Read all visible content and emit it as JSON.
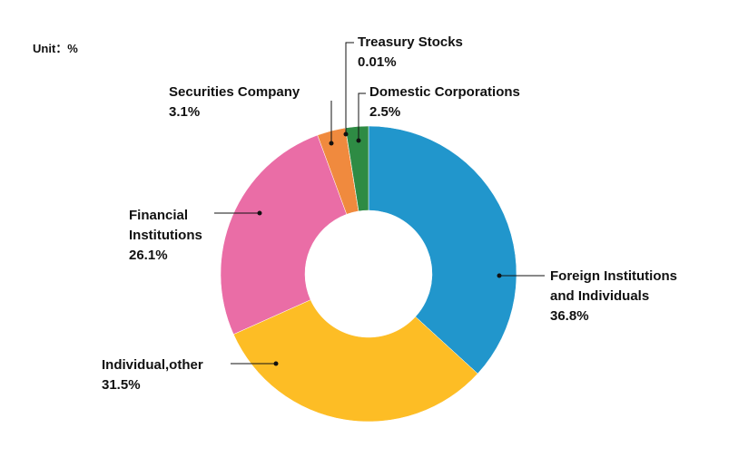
{
  "unit_label": "Unit：%",
  "chart_data": {
    "type": "pie",
    "donut": true,
    "legend": "none",
    "slices": [
      {
        "label_lines": [
          "Foreign Institutions",
          "and Individuals"
        ],
        "percent_text": "36.8%",
        "value": 36.8,
        "color": "#2196cc"
      },
      {
        "label_lines": [
          "Individual,other"
        ],
        "percent_text": "31.5%",
        "value": 31.5,
        "color": "#fdbd25"
      },
      {
        "label_lines": [
          "Financial",
          "Institutions"
        ],
        "percent_text": "26.1%",
        "value": 26.1,
        "color": "#ea6da6"
      },
      {
        "label_lines": [
          "Securities Company"
        ],
        "percent_text": "3.1%",
        "value": 3.1,
        "color": "#f08a3e"
      },
      {
        "label_lines": [
          "Treasury Stocks"
        ],
        "percent_text": "0.01%",
        "value": 0.01,
        "color": "#8dc14a"
      },
      {
        "label_lines": [
          "Domestic Corporations"
        ],
        "percent_text": "2.5%",
        "value": 2.5,
        "color": "#2e8b44"
      }
    ]
  }
}
